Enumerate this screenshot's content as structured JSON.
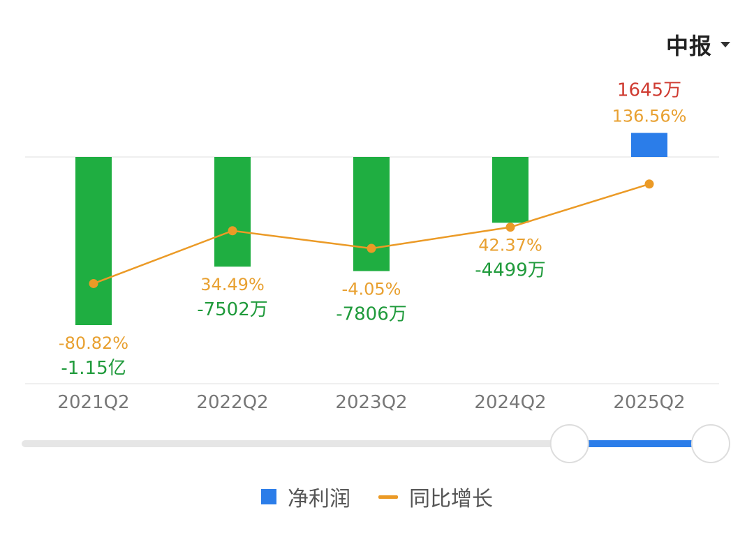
{
  "period_selector": {
    "label": "中报",
    "icon": "caret-down-icon"
  },
  "colors": {
    "positive_bar": "#2b7de9",
    "negative_bar": "#1fae41",
    "line": "#eb9a26",
    "positive_value_text": "#cf3b31",
    "negative_value_text": "#1f9a3b",
    "growth_text": "#e8a030",
    "slider_track": "#e6e6e6",
    "slider_active": "#2b7de9"
  },
  "legend": [
    {
      "label": "净利润",
      "type": "bar"
    },
    {
      "label": "同比增长",
      "type": "line"
    }
  ],
  "chart_data": {
    "type": "bar",
    "categories": [
      "2021Q2",
      "2022Q2",
      "2023Q2",
      "2024Q2",
      "2025Q2"
    ],
    "series": [
      {
        "name": "净利润",
        "type": "bar",
        "values": [
          -11500,
          -7502,
          -7806,
          -4499,
          1645
        ],
        "unit": "万",
        "labels": [
          "-1.15亿",
          "-7502万",
          "-7806万",
          "-4499万",
          "1645万"
        ]
      },
      {
        "name": "同比增长",
        "type": "line",
        "values": [
          -80.82,
          34.49,
          -4.05,
          42.37,
          136.56
        ],
        "unit": "%",
        "labels": [
          "-80.82%",
          "34.49%",
          "-4.05%",
          "42.37%",
          "136.56%"
        ]
      }
    ],
    "range_slider": {
      "start_fraction": 0.8,
      "end_fraction": 1.0
    }
  }
}
